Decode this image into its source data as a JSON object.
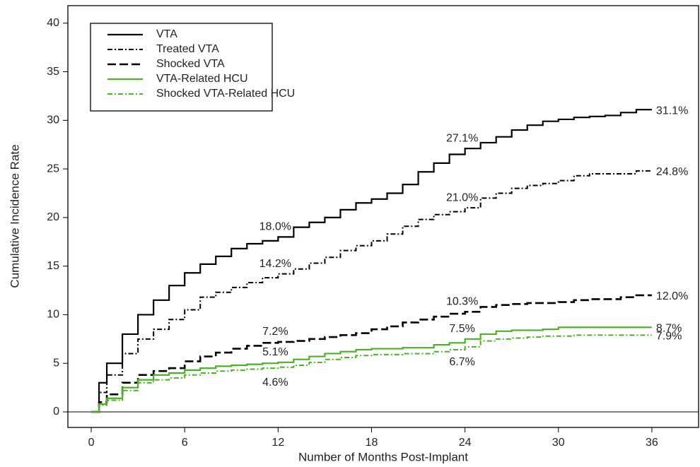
{
  "chart_data": {
    "type": "line",
    "xlabel": "Number of Months Post-Implant",
    "ylabel": "Cumulative Incidence Rate",
    "x": [
      0,
      0.5,
      1,
      2,
      3,
      4,
      5,
      6,
      7,
      8,
      9,
      10,
      11,
      12,
      13,
      14,
      15,
      16,
      17,
      18,
      19,
      20,
      21,
      22,
      23,
      24,
      25,
      26,
      27,
      28,
      29,
      30,
      31,
      32,
      33,
      34,
      35,
      36
    ],
    "xlim": [
      -1.5,
      39
    ],
    "ylim": [
      -1.6,
      41.8
    ],
    "xticks": [
      0,
      6,
      12,
      18,
      24,
      30,
      36
    ],
    "yticks": [
      0,
      5,
      10,
      15,
      20,
      25,
      30,
      35,
      40
    ],
    "step": true,
    "legend": "top-left",
    "series": [
      {
        "name": "VTA",
        "color": "#000000",
        "dash": "",
        "width": 2.2,
        "values": [
          0,
          3,
          5,
          8,
          10,
          11.5,
          13,
          14.3,
          15.2,
          16,
          16.8,
          17.3,
          17.6,
          18.0,
          19,
          19.5,
          20,
          20.8,
          21.5,
          21.9,
          22.5,
          23.4,
          24.7,
          25.6,
          26.5,
          27.1,
          27.7,
          28.3,
          29,
          29.5,
          29.9,
          30.1,
          30.3,
          30.4,
          30.5,
          30.8,
          31.1,
          31.1
        ],
        "value_labels": [
          null,
          null,
          null,
          null,
          null,
          null,
          null,
          null,
          null,
          null,
          null,
          null,
          null,
          "18.0%",
          null,
          null,
          null,
          null,
          null,
          null,
          null,
          null,
          null,
          null,
          null,
          "27.1%",
          null,
          null,
          null,
          null,
          null,
          null,
          null,
          null,
          null,
          null,
          null,
          "31.1%"
        ]
      },
      {
        "name": "Treated VTA",
        "color": "#000000",
        "dash": "7,3,2,3",
        "width": 2,
        "values": [
          0,
          2,
          3.8,
          6,
          7.5,
          8.5,
          9.5,
          10.5,
          11.8,
          12.3,
          12.8,
          13.3,
          13.8,
          14.2,
          14.7,
          15.3,
          15.9,
          16.6,
          17.1,
          17.6,
          18.3,
          19.1,
          19.8,
          20.3,
          20.6,
          21.0,
          22,
          22.5,
          23,
          23.3,
          23.5,
          23.8,
          24.3,
          24.5,
          24.5,
          24.5,
          24.8,
          24.8
        ],
        "value_labels": [
          null,
          null,
          null,
          null,
          null,
          null,
          null,
          null,
          null,
          null,
          null,
          null,
          null,
          "14.2%",
          null,
          null,
          null,
          null,
          null,
          null,
          null,
          null,
          null,
          null,
          null,
          "21.0%",
          null,
          null,
          null,
          null,
          null,
          null,
          null,
          null,
          null,
          null,
          null,
          "24.8%"
        ]
      },
      {
        "name": "Shocked VTA",
        "color": "#000000",
        "dash": "12,5",
        "width": 2.6,
        "values": [
          0,
          1,
          1.8,
          3,
          3.8,
          4.2,
          4.5,
          5.2,
          5.7,
          6.1,
          6.5,
          6.8,
          7.1,
          7.2,
          7.3,
          7.5,
          7.7,
          7.9,
          8.1,
          8.5,
          8.8,
          9.2,
          9.5,
          9.8,
          10.1,
          10.3,
          10.8,
          11,
          11.1,
          11.2,
          11.2,
          11.3,
          11.5,
          11.6,
          11.6,
          11.8,
          12.0,
          12.0
        ],
        "value_labels": [
          null,
          null,
          null,
          null,
          null,
          null,
          null,
          null,
          null,
          null,
          null,
          null,
          null,
          "7.2%",
          null,
          null,
          null,
          null,
          null,
          null,
          null,
          null,
          null,
          null,
          null,
          "10.3%",
          null,
          null,
          null,
          null,
          null,
          null,
          null,
          null,
          null,
          null,
          null,
          "12.0%"
        ]
      },
      {
        "name": "VTA-Related HCU",
        "color": "#4caf27",
        "dash": "",
        "width": 2.2,
        "values": [
          0,
          0.8,
          1.4,
          2.5,
          3.3,
          3.8,
          4,
          4.3,
          4.5,
          4.7,
          4.8,
          4.9,
          5,
          5.1,
          5.4,
          5.7,
          6,
          6.2,
          6.4,
          6.5,
          6.5,
          6.6,
          6.6,
          6.9,
          7.1,
          7.5,
          8,
          8.3,
          8.4,
          8.4,
          8.5,
          8.7,
          8.7,
          8.7,
          8.7,
          8.7,
          8.7,
          8.7
        ],
        "value_labels": [
          null,
          null,
          null,
          null,
          null,
          null,
          null,
          null,
          null,
          null,
          null,
          null,
          null,
          "5.1%",
          null,
          null,
          null,
          null,
          null,
          null,
          null,
          null,
          null,
          null,
          null,
          "7.5%",
          null,
          null,
          null,
          null,
          null,
          null,
          null,
          null,
          null,
          null,
          null,
          "8.7%"
        ]
      },
      {
        "name": "Shocked VTA-Related HCU",
        "color": "#4caf27",
        "dash": "7,3,2,3",
        "width": 2,
        "values": [
          0,
          0.7,
          1.2,
          2.2,
          3,
          3.3,
          3.5,
          3.8,
          4,
          4.2,
          4.3,
          4.4,
          4.5,
          4.6,
          4.8,
          5.1,
          5.4,
          5.6,
          5.8,
          5.9,
          5.9,
          6,
          6,
          6.2,
          6.4,
          6.7,
          7.3,
          7.5,
          7.6,
          7.7,
          7.8,
          7.8,
          7.9,
          7.9,
          7.9,
          7.9,
          7.9,
          7.9
        ],
        "value_labels": [
          null,
          null,
          null,
          null,
          null,
          null,
          null,
          null,
          null,
          null,
          null,
          null,
          null,
          "4.6%",
          null,
          null,
          null,
          null,
          null,
          null,
          null,
          null,
          null,
          null,
          null,
          "6.7%",
          null,
          null,
          null,
          null,
          null,
          null,
          null,
          null,
          null,
          null,
          null,
          "7.9%"
        ]
      }
    ]
  }
}
